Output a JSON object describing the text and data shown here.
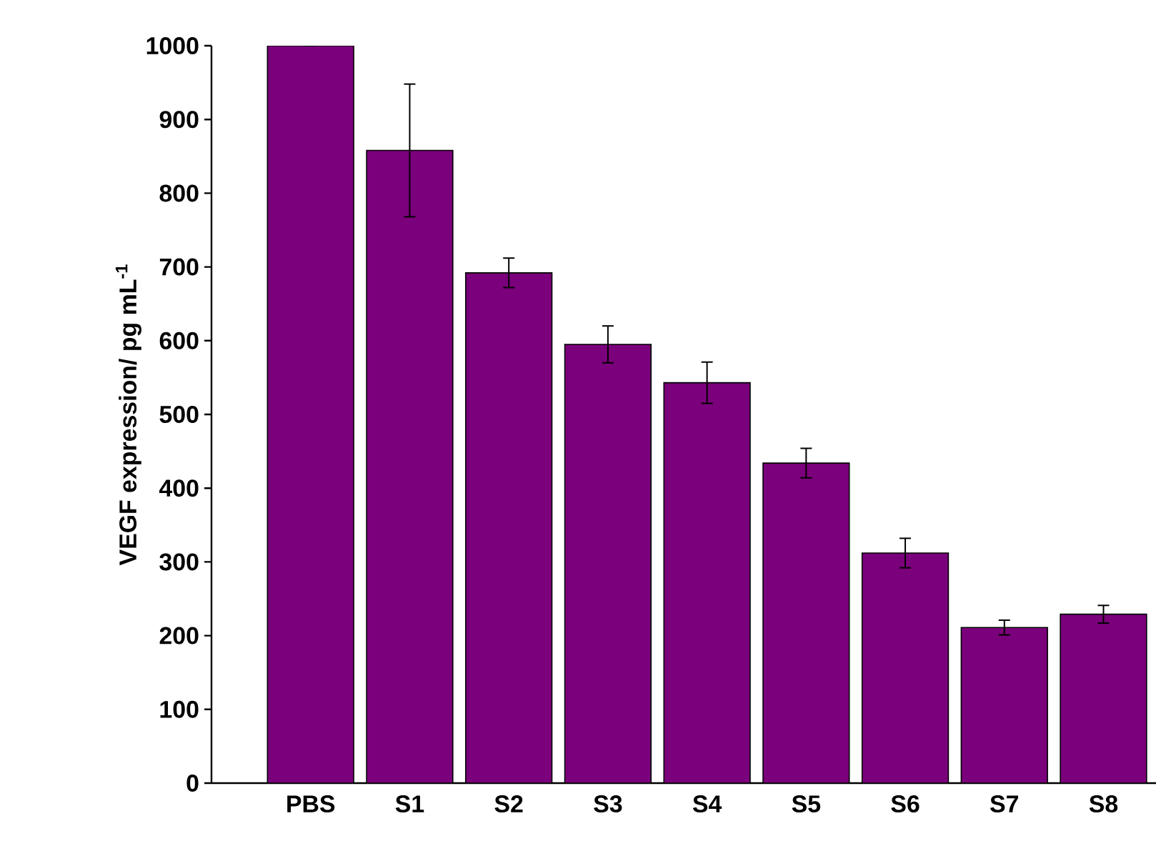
{
  "chart_data": {
    "type": "bar",
    "ylabel": "VEGF expression/ pg mL$^{-1}$",
    "categories": [
      "PBS",
      "S1",
      "S2",
      "S3",
      "S4",
      "S5",
      "S6",
      "S7",
      "S8"
    ],
    "values": [
      1000,
      858,
      692,
      595,
      543,
      434,
      312,
      211,
      229
    ],
    "errors": [
      null,
      90,
      20,
      25,
      28,
      20,
      20,
      10,
      12
    ],
    "color": "#7b007b",
    "ylim": [
      0,
      1000
    ],
    "yticks": [
      0,
      100,
      200,
      300,
      400,
      500,
      600,
      700,
      800,
      900,
      1000
    ]
  }
}
